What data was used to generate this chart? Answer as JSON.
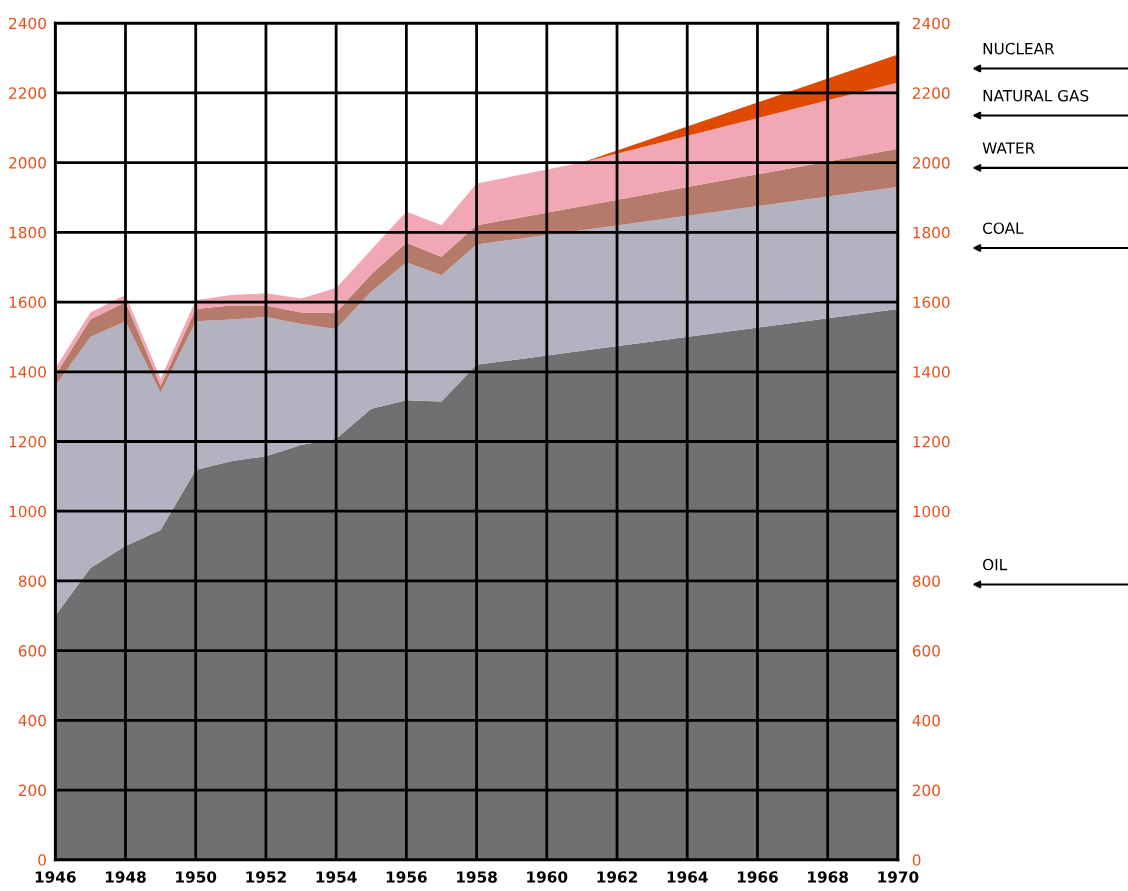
{
  "chart_data": {
    "type": "area",
    "stacked": true,
    "x": [
      1946,
      1947,
      1948,
      1949,
      1950,
      1951,
      1952,
      1953,
      1954,
      1955,
      1956,
      1957,
      1958,
      1961,
      1970
    ],
    "series": [
      {
        "name": "OIL",
        "color": "#707070",
        "values": [
          700,
          837,
          900,
          946,
          1118,
          1143,
          1158,
          1190,
          1208,
          1294,
          1318,
          1315,
          1420,
          1460,
          1580
        ]
      },
      {
        "name": "COAL",
        "color": "#b2b2c0",
        "values": [
          660,
          663,
          645,
          394,
          427,
          407,
          399,
          347,
          315,
          336,
          396,
          362,
          345,
          346,
          350
        ]
      },
      {
        "name": "WATER",
        "color": "#b57a6a",
        "values": [
          30,
          50,
          55,
          20,
          35,
          40,
          33,
          33,
          47,
          50,
          56,
          53,
          55,
          69,
          110
        ]
      },
      {
        "name": "NATURAL GAS",
        "color": "#f2a8b4",
        "values": [
          20,
          20,
          20,
          20,
          25,
          30,
          35,
          40,
          70,
          70,
          90,
          90,
          120,
          125,
          190
        ]
      },
      {
        "name": "NUCLEAR",
        "color": "#e04a00",
        "values": [
          0,
          0,
          0,
          0,
          0,
          0,
          0,
          0,
          0,
          0,
          0,
          0,
          0,
          0,
          80
        ]
      }
    ],
    "xlim": [
      1946,
      1970
    ],
    "xticks": [
      1946,
      1948,
      1950,
      1952,
      1954,
      1956,
      1958,
      1960,
      1962,
      1964,
      1966,
      1968,
      1970
    ],
    "ylim": [
      0,
      2400
    ],
    "yticks": [
      0,
      200,
      400,
      600,
      800,
      1000,
      1200,
      1400,
      1600,
      1800,
      2000,
      2200,
      2400
    ],
    "y2lim": [
      0,
      2400
    ],
    "y2ticks": [
      0,
      200,
      400,
      600,
      800,
      1000,
      1200,
      1400,
      1600,
      1800,
      2000,
      2200,
      2400
    ],
    "grid": true,
    "legend": false
  }
}
